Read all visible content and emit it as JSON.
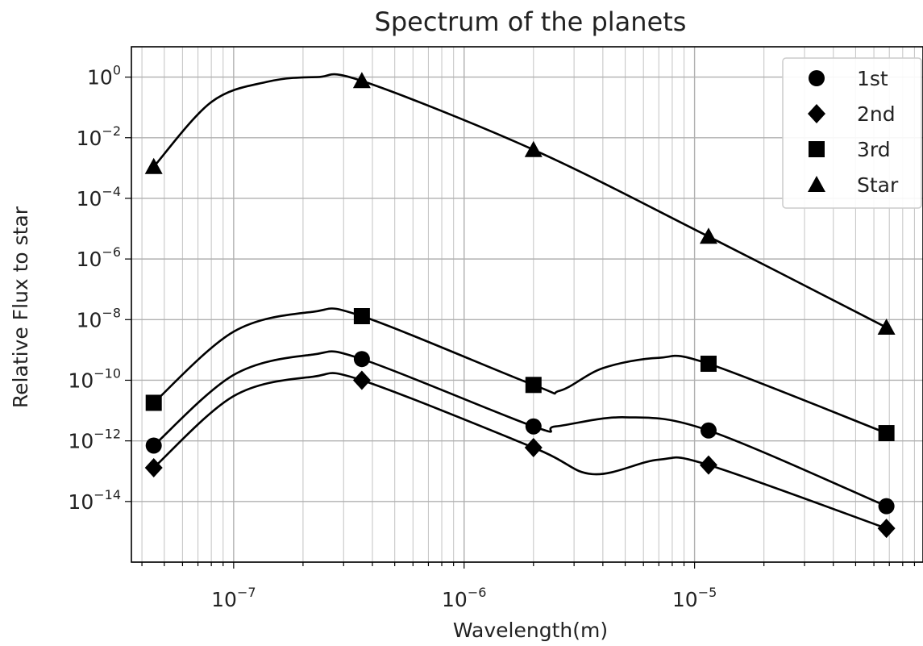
{
  "chart_data": {
    "type": "line",
    "title": "Spectrum of the planets",
    "xlabel": "Wavelength(m)",
    "ylabel": "Relative Flux to star",
    "xscale": "log",
    "yscale": "log",
    "xlim": [
      3.6e-08,
      9.8e-05
    ],
    "ylim": [
      1e-16,
      10
    ],
    "grid": true,
    "legend": "top-right",
    "x_ticks": [
      {
        "base": "10",
        "exp": "−7",
        "value": 1e-07
      },
      {
        "base": "10",
        "exp": "−6",
        "value": 1e-06
      },
      {
        "base": "10",
        "exp": "−5",
        "value": 1e-05
      }
    ],
    "y_ticks": [
      {
        "base": "10",
        "exp": "0",
        "value": 1
      },
      {
        "base": "10",
        "exp": "−2",
        "value": 0.01
      },
      {
        "base": "10",
        "exp": "−4",
        "value": 0.0001
      },
      {
        "base": "10",
        "exp": "−6",
        "value": 1e-06
      },
      {
        "base": "10",
        "exp": "−8",
        "value": 1e-08
      },
      {
        "base": "10",
        "exp": "−10",
        "value": 1e-10
      },
      {
        "base": "10",
        "exp": "−12",
        "value": 1e-12
      },
      {
        "base": "10",
        "exp": "−14",
        "value": 1e-14
      }
    ],
    "x": [
      4.5e-08,
      3.6e-07,
      2e-06,
      1.15e-05,
      6.8e-05
    ],
    "series": [
      {
        "name": "1st",
        "marker": "circle",
        "color": "#000000",
        "values": [
          7e-13,
          5e-10,
          3e-12,
          2.2e-12,
          7e-15
        ],
        "curve": [
          [
            4.5e-08,
            7e-13
          ],
          [
            1e-07,
            1.5e-10
          ],
          [
            2.2e-07,
            7e-10
          ],
          [
            3.6e-07,
            5e-10
          ],
          [
            2e-06,
            3e-12
          ],
          [
            2.5e-06,
            3e-12
          ],
          [
            5e-06,
            6e-12
          ],
          [
            1.15e-05,
            2.2e-12
          ],
          [
            6.8e-05,
            7e-15
          ]
        ]
      },
      {
        "name": "2nd",
        "marker": "diamond",
        "color": "#000000",
        "values": [
          1.3e-13,
          1e-10,
          6e-13,
          1.6e-13,
          1.3e-15
        ],
        "curve": [
          [
            4.5e-08,
            1.3e-13
          ],
          [
            1e-07,
            3e-11
          ],
          [
            2.2e-07,
            1.3e-10
          ],
          [
            3.6e-07,
            1e-10
          ],
          [
            2e-06,
            6e-13
          ],
          [
            3.6e-06,
            8e-14
          ],
          [
            7e-06,
            2.4e-13
          ],
          [
            1.15e-05,
            1.6e-13
          ],
          [
            6.8e-05,
            1.3e-15
          ]
        ]
      },
      {
        "name": "3rd",
        "marker": "square",
        "color": "#000000",
        "values": [
          1.8e-11,
          1.3e-08,
          7e-11,
          3.5e-10,
          1.8e-12
        ],
        "curve": [
          [
            4.5e-08,
            1.8e-11
          ],
          [
            1e-07,
            4e-09
          ],
          [
            2.2e-07,
            1.8e-08
          ],
          [
            3.6e-07,
            1.3e-08
          ],
          [
            2e-06,
            7e-11
          ],
          [
            2.6e-06,
            4.5e-11
          ],
          [
            4e-06,
            2.5e-10
          ],
          [
            7e-06,
            5.5e-10
          ],
          [
            1.15e-05,
            3.5e-10
          ],
          [
            6.8e-05,
            1.8e-12
          ]
        ]
      },
      {
        "name": "Star",
        "marker": "triangle",
        "color": "#000000",
        "values": [
          0.0011,
          0.75,
          0.004,
          5.5e-06,
          5.5e-09
        ],
        "curve": [
          [
            4.5e-08,
            0.0011
          ],
          [
            8e-08,
            0.15
          ],
          [
            1.4e-07,
            0.7
          ],
          [
            2.3e-07,
            1.0
          ],
          [
            3.6e-07,
            0.75
          ],
          [
            2e-06,
            0.004
          ],
          [
            1.15e-05,
            5.5e-06
          ],
          [
            6.8e-05,
            5.5e-09
          ]
        ]
      }
    ]
  }
}
